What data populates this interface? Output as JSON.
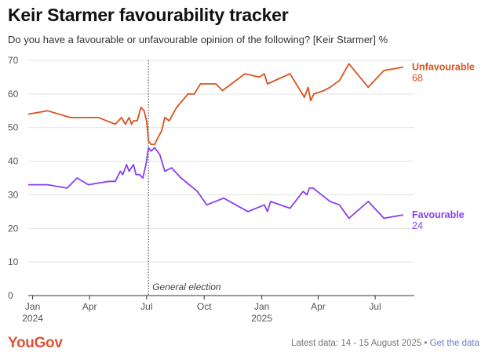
{
  "header": {
    "title": "Keir Starmer favourability tracker",
    "subtitle": "Do you have a favourable or unfavourable opinion of the following? [Keir Starmer] %"
  },
  "footer": {
    "logo": "YouGov",
    "latest_data": "Latest data: 14 - 15 August 2025 •",
    "get_data_link": "Get the data"
  },
  "chart_data": {
    "type": "line",
    "x_unit": "date",
    "xlim": [
      "2023-12-25",
      "2025-08-20"
    ],
    "ylim": [
      0,
      70
    ],
    "yticks": [
      0,
      10,
      20,
      30,
      40,
      50,
      60,
      70
    ],
    "xticks": [
      {
        "date": "2024-01-01",
        "label": "Jan",
        "year": "2024"
      },
      {
        "date": "2024-04-01",
        "label": "Apr",
        "year": ""
      },
      {
        "date": "2024-07-01",
        "label": "Jul",
        "year": ""
      },
      {
        "date": "2024-10-01",
        "label": "Oct",
        "year": ""
      },
      {
        "date": "2025-01-01",
        "label": "Jan",
        "year": "2025"
      },
      {
        "date": "2025-04-01",
        "label": "Apr",
        "year": ""
      },
      {
        "date": "2025-07-01",
        "label": "Jul",
        "year": ""
      }
    ],
    "annotation": {
      "date": "2024-07-04",
      "label": "General election"
    },
    "series": [
      {
        "name": "Unfavourable",
        "last_value": "68",
        "color": "#d9531e",
        "points": [
          [
            "2023-12-25",
            54
          ],
          [
            "2024-01-25",
            55
          ],
          [
            "2024-03-01",
            53
          ],
          [
            "2024-04-15",
            53
          ],
          [
            "2024-05-12",
            51
          ],
          [
            "2024-05-22",
            53
          ],
          [
            "2024-05-28",
            51
          ],
          [
            "2024-06-03",
            53
          ],
          [
            "2024-06-07",
            51
          ],
          [
            "2024-06-10",
            52
          ],
          [
            "2024-06-16",
            52
          ],
          [
            "2024-06-22",
            56
          ],
          [
            "2024-06-27",
            55
          ],
          [
            "2024-07-01",
            52
          ],
          [
            "2024-07-04",
            46
          ],
          [
            "2024-07-08",
            45
          ],
          [
            "2024-07-14",
            45
          ],
          [
            "2024-07-19",
            47
          ],
          [
            "2024-07-25",
            49
          ],
          [
            "2024-07-30",
            53
          ],
          [
            "2024-08-06",
            52
          ],
          [
            "2024-08-18",
            56
          ],
          [
            "2024-09-05",
            60
          ],
          [
            "2024-09-15",
            60
          ],
          [
            "2024-09-25",
            63
          ],
          [
            "2024-10-20",
            63
          ],
          [
            "2024-10-30",
            61
          ],
          [
            "2024-12-05",
            66
          ],
          [
            "2024-12-28",
            65
          ],
          [
            "2025-01-05",
            66
          ],
          [
            "2025-01-10",
            63
          ],
          [
            "2025-02-15",
            66
          ],
          [
            "2025-03-10",
            59
          ],
          [
            "2025-03-16",
            62
          ],
          [
            "2025-03-20",
            58
          ],
          [
            "2025-03-25",
            60
          ],
          [
            "2025-04-10",
            61
          ],
          [
            "2025-04-20",
            62
          ],
          [
            "2025-05-05",
            64
          ],
          [
            "2025-05-20",
            69
          ],
          [
            "2025-06-20",
            62
          ],
          [
            "2025-07-15",
            67
          ],
          [
            "2025-08-15",
            68
          ]
        ]
      },
      {
        "name": "Favourable",
        "last_value": "24",
        "color": "#8a3ff0",
        "points": [
          [
            "2023-12-25",
            33
          ],
          [
            "2024-01-25",
            33
          ],
          [
            "2024-02-25",
            32
          ],
          [
            "2024-03-12",
            35
          ],
          [
            "2024-03-30",
            33
          ],
          [
            "2024-05-02",
            34
          ],
          [
            "2024-05-12",
            34
          ],
          [
            "2024-05-20",
            37
          ],
          [
            "2024-05-24",
            36
          ],
          [
            "2024-05-30",
            39
          ],
          [
            "2024-06-03",
            37
          ],
          [
            "2024-06-10",
            39
          ],
          [
            "2024-06-14",
            36
          ],
          [
            "2024-06-20",
            36
          ],
          [
            "2024-06-25",
            35
          ],
          [
            "2024-06-30",
            39
          ],
          [
            "2024-07-04",
            44
          ],
          [
            "2024-07-08",
            43
          ],
          [
            "2024-07-14",
            44
          ],
          [
            "2024-07-22",
            42
          ],
          [
            "2024-07-30",
            37
          ],
          [
            "2024-08-10",
            38
          ],
          [
            "2024-08-25",
            35
          ],
          [
            "2024-09-20",
            31
          ],
          [
            "2024-10-05",
            27
          ],
          [
            "2024-11-01",
            29
          ],
          [
            "2024-12-10",
            25
          ],
          [
            "2025-01-05",
            27
          ],
          [
            "2025-01-10",
            25
          ],
          [
            "2025-01-15",
            28
          ],
          [
            "2025-02-15",
            26
          ],
          [
            "2025-03-08",
            31
          ],
          [
            "2025-03-14",
            30
          ],
          [
            "2025-03-18",
            32
          ],
          [
            "2025-03-24",
            32
          ],
          [
            "2025-04-20",
            28
          ],
          [
            "2025-05-05",
            27
          ],
          [
            "2025-05-20",
            23
          ],
          [
            "2025-06-20",
            28
          ],
          [
            "2025-07-15",
            23
          ],
          [
            "2025-08-15",
            24
          ]
        ]
      }
    ]
  }
}
